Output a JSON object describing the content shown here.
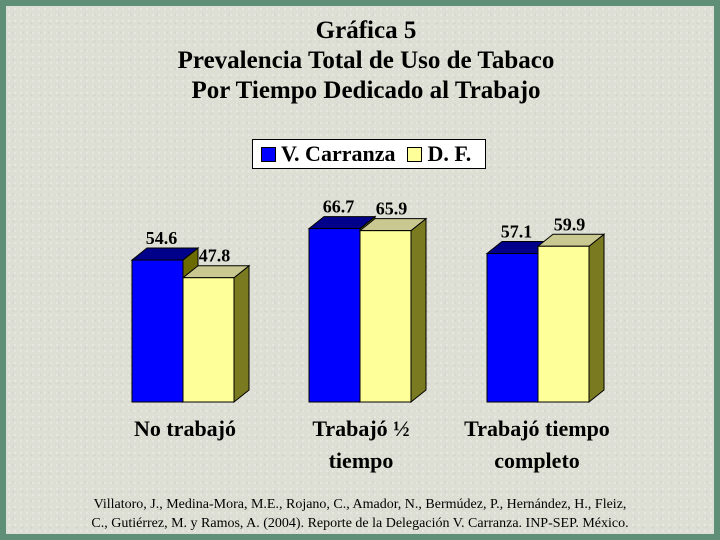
{
  "title_lines": [
    "Gráfica 5",
    "Prevalencia Total de Uso de Tabaco",
    "Por Tiempo Dedicado al Trabajo"
  ],
  "chart_data": {
    "type": "bar",
    "categories": [
      "No trabajó",
      "Trabajó ½ tiempo",
      "Trabajó tiempo completo"
    ],
    "category_lines": [
      [
        "No trabajó"
      ],
      [
        "Trabajó ½",
        "tiempo"
      ],
      [
        "Trabajó tiempo",
        "completo"
      ]
    ],
    "series": [
      {
        "name": "V. Carranza",
        "values": [
          54.6,
          66.7,
          57.1
        ],
        "value_labels": [
          "54.6",
          "66.7",
          "57.1"
        ],
        "color": "#0000ff"
      },
      {
        "name": "D. F.",
        "values": [
          47.8,
          65.9,
          59.9
        ],
        "value_labels": [
          "47.8",
          "65.9",
          "59.9"
        ],
        "color": "#ffff99"
      }
    ],
    "ylim": [
      0,
      100
    ],
    "grid": false,
    "legend_position": "top-center",
    "bar_style": "3d"
  },
  "source_lines": [
    "Villatoro, J., Medina-Mora, M.E., Rojano, C., Amador, N., Bermúdez, P., Hernández, H., Fleiz,",
    "C., Gutiérrez, M. y Ramos, A. (2004). Reporte de la Delegación V. Carranza. INP-SEP. México."
  ]
}
